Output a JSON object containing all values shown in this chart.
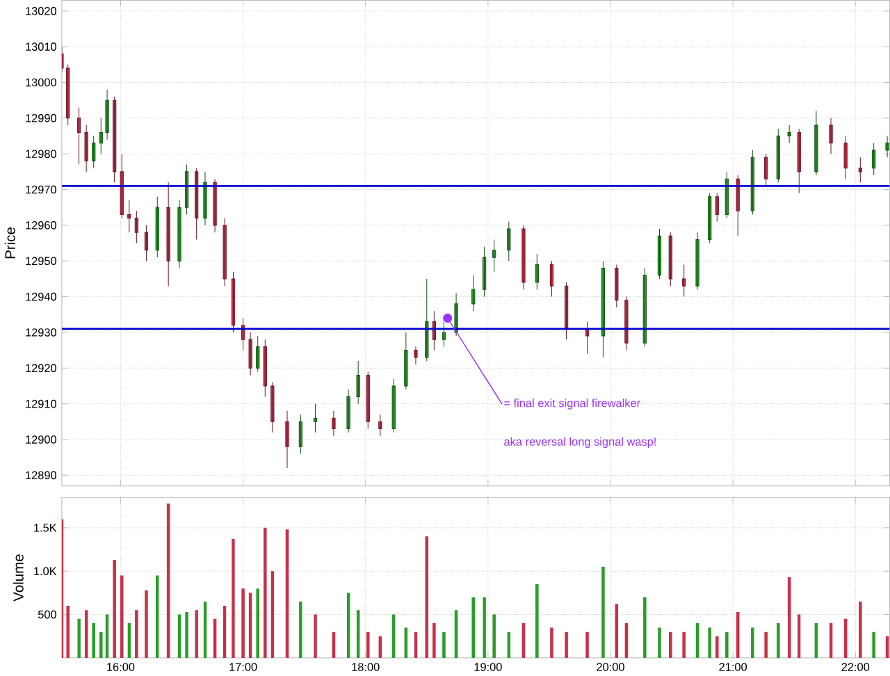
{
  "chart_data": [
    {
      "type": "candlestick",
      "ylabel": "Price",
      "xlim": [
        15.52,
        22.28
      ],
      "ylim": [
        12887,
        13023
      ],
      "xticks": [
        {
          "value": 16,
          "label": null
        },
        {
          "value": 17,
          "label": null
        },
        {
          "value": 18,
          "label": null
        },
        {
          "value": 19,
          "label": null
        },
        {
          "value": 20,
          "label": null
        },
        {
          "value": 21,
          "label": null
        },
        {
          "value": 22,
          "label": null
        }
      ],
      "yticks": [
        12890,
        12900,
        12910,
        12920,
        12930,
        12940,
        12950,
        12960,
        12970,
        12980,
        12990,
        13000,
        13010,
        13020
      ],
      "tick_labels": "y",
      "grid": true,
      "x": [
        15.52,
        15.57,
        15.66,
        15.72,
        15.78,
        15.84,
        15.89,
        15.95,
        16.01,
        16.07,
        16.13,
        16.21,
        16.3,
        16.39,
        16.48,
        16.54,
        16.62,
        16.69,
        16.77,
        16.85,
        16.92,
        17.0,
        17.06,
        17.12,
        17.18,
        17.24,
        17.36,
        17.47,
        17.59,
        17.74,
        17.86,
        17.94,
        18.02,
        18.12,
        18.23,
        18.33,
        18.41,
        18.5,
        18.56,
        18.64,
        18.74,
        18.88,
        18.97,
        19.05,
        19.17,
        19.29,
        19.4,
        19.52,
        19.64,
        19.81,
        19.94,
        20.05,
        20.13,
        20.28,
        20.4,
        20.49,
        20.6,
        20.71,
        20.81,
        20.87,
        20.95,
        21.04,
        21.16,
        21.27,
        21.37,
        21.46,
        21.54,
        21.68,
        21.8,
        21.92,
        22.04,
        22.15,
        22.26
      ],
      "ohlc": [
        [
          13008,
          13010,
          13003,
          13004
        ],
        [
          13004,
          13005,
          12988,
          12990
        ],
        [
          12990,
          12993,
          12977,
          12986
        ],
        [
          12986,
          12988,
          12975,
          12978
        ],
        [
          12978,
          12985,
          12976,
          12983
        ],
        [
          12983,
          12990,
          12980,
          12986
        ],
        [
          12986,
          12998,
          12984,
          12995
        ],
        [
          12995,
          12996,
          12972,
          12975
        ],
        [
          12975,
          12980,
          12962,
          12963
        ],
        [
          12963,
          12967,
          12958,
          12962
        ],
        [
          12962,
          12964,
          12955,
          12958
        ],
        [
          12958,
          12960,
          12950,
          12953
        ],
        [
          12953,
          12968,
          12951,
          12965
        ],
        [
          12965,
          12972,
          12943,
          12950
        ],
        [
          12950,
          12967,
          12948,
          12965
        ],
        [
          12965,
          12977,
          12963,
          12975
        ],
        [
          12975,
          12976,
          12956,
          12962
        ],
        [
          12962,
          12975,
          12960,
          12972
        ],
        [
          12972,
          12973,
          12958,
          12960
        ],
        [
          12960,
          12962,
          12943,
          12945
        ],
        [
          12945,
          12947,
          12930,
          12932
        ],
        [
          12932,
          12934,
          12925,
          12928
        ],
        [
          12928,
          12930,
          12918,
          12920
        ],
        [
          12920,
          12929,
          12919,
          12926
        ],
        [
          12926,
          12928,
          12912,
          12915
        ],
        [
          12915,
          12916,
          12902,
          12905
        ],
        [
          12905,
          12908,
          12892,
          12898
        ],
        [
          12898,
          12907,
          12896,
          12905
        ],
        [
          12905,
          12910,
          12902,
          12906
        ],
        [
          12906,
          12908,
          12901,
          12903
        ],
        [
          12903,
          12914,
          12902,
          12912
        ],
        [
          12912,
          12922,
          12910,
          12918
        ],
        [
          12918,
          12919,
          12903,
          12905
        ],
        [
          12905,
          12907,
          12901,
          12903
        ],
        [
          12903,
          12917,
          12902,
          12915
        ],
        [
          12915,
          12930,
          12914,
          12925
        ],
        [
          12925,
          12926,
          12921,
          12923
        ],
        [
          12923,
          12945,
          12922,
          12933
        ],
        [
          12933,
          12936,
          12925,
          12928
        ],
        [
          12928,
          12933,
          12926,
          12930
        ],
        [
          12930,
          12941,
          12929,
          12938
        ],
        [
          12938,
          12946,
          12936,
          12942
        ],
        [
          12942,
          12954,
          12940,
          12951
        ],
        [
          12951,
          12956,
          12947,
          12953
        ],
        [
          12953,
          12961,
          12950,
          12959
        ],
        [
          12959,
          12960,
          12942,
          12944
        ],
        [
          12944,
          12952,
          12942,
          12949
        ],
        [
          12949,
          12950,
          12940,
          12943
        ],
        [
          12943,
          12944,
          12928,
          12931
        ],
        [
          12931,
          12933,
          12924,
          12929
        ],
        [
          12929,
          12950,
          12923,
          12948
        ],
        [
          12948,
          12949,
          12937,
          12939
        ],
        [
          12939,
          12940,
          12925,
          12927
        ],
        [
          12927,
          12948,
          12926,
          12946
        ],
        [
          12946,
          12959,
          12945,
          12957
        ],
        [
          12957,
          12958,
          12943,
          12945
        ],
        [
          12945,
          12949,
          12940,
          12943
        ],
        [
          12943,
          12958,
          12942,
          12956
        ],
        [
          12956,
          12969,
          12955,
          12968
        ],
        [
          12968,
          12969,
          12961,
          12963
        ],
        [
          12963,
          12975,
          12962,
          12973
        ],
        [
          12973,
          12974,
          12957,
          12964
        ],
        [
          12964,
          12981,
          12963,
          12979
        ],
        [
          12979,
          12980,
          12971,
          12973
        ],
        [
          12973,
          12987,
          12972,
          12985
        ],
        [
          12985,
          12988,
          12983,
          12986
        ],
        [
          12986,
          12987,
          12969,
          12975
        ],
        [
          12975,
          12992,
          12974,
          12988
        ],
        [
          12988,
          12990,
          12980,
          12983
        ],
        [
          12983,
          12985,
          12973,
          12976
        ],
        [
          12976,
          12979,
          12972,
          12975
        ],
        [
          12976,
          12983,
          12974,
          12981
        ],
        [
          12981,
          12985,
          12979,
          12983
        ]
      ],
      "colors": [
        "#c8304a",
        "#c8304a",
        "#c8304a",
        "#c8304a",
        "#2a9d2a",
        "#2a9d2a",
        "#2a9d2a",
        "#c8304a",
        "#c8304a",
        "#c8304a",
        "#c8304a",
        "#c8304a",
        "#2a9d2a",
        "#c8304a",
        "#2a9d2a",
        "#2a9d2a",
        "#c8304a",
        "#2a9d2a",
        "#c8304a",
        "#c8304a",
        "#c8304a",
        "#c8304a",
        "#c8304a",
        "#2a9d2a",
        "#c8304a",
        "#c8304a",
        "#c8304a",
        "#2a9d2a",
        "#2a9d2a",
        "#c8304a",
        "#2a9d2a",
        "#2a9d2a",
        "#c8304a",
        "#c8304a",
        "#2a9d2a",
        "#2a9d2a",
        "#c8304a",
        "#2a9d2a",
        "#c8304a",
        "#2a9d2a",
        "#2a9d2a",
        "#2a9d2a",
        "#2a9d2a",
        "#2a9d2a",
        "#2a9d2a",
        "#c8304a",
        "#2a9d2a",
        "#c8304a",
        "#c8304a",
        "#c8304a",
        "#2a9d2a",
        "#c8304a",
        "#c8304a",
        "#2a9d2a",
        "#2a9d2a",
        "#c8304a",
        "#c8304a",
        "#2a9d2a",
        "#2a9d2a",
        "#c8304a",
        "#2a9d2a",
        "#c8304a",
        "#2a9d2a",
        "#c8304a",
        "#2a9d2a",
        "#2a9d2a",
        "#c8304a",
        "#2a9d2a",
        "#c8304a",
        "#c8304a",
        "#c8304a",
        "#2a9d2a",
        "#2a9d2a"
      ],
      "series": [
        {
          "type": "scatter",
          "x": [
            18.67
          ],
          "values": [
            12934
          ],
          "color": "#9933ff"
        }
      ],
      "ref_lines": [
        {
          "axis": "y",
          "value": 12971,
          "color": "#0000cc"
        },
        {
          "axis": "y",
          "value": 12931,
          "color": "#0000cc"
        }
      ],
      "annotations": [
        {
          "text": "= final exit signal firewalker",
          "x": 18.67,
          "y": 12934
        },
        "aka reversal long signal wasp!"
      ]
    },
    {
      "type": "bar",
      "ylabel": "Volume",
      "xlim": [
        15.52,
        22.28
      ],
      "ylim": [
        0,
        1850
      ],
      "xticks": [
        {
          "value": 16,
          "label": "16:00"
        },
        {
          "value": 17,
          "label": "17:00"
        },
        {
          "value": 18,
          "label": "18:00"
        },
        {
          "value": 19,
          "label": "19:00"
        },
        {
          "value": 20,
          "label": "20:00"
        },
        {
          "value": 21,
          "label": "21:00"
        },
        {
          "value": 22,
          "label": "22:00"
        }
      ],
      "yticks": [
        500,
        {
          "value": 1000,
          "label": "1.0K"
        },
        {
          "value": 1500,
          "label": "1.5K"
        }
      ],
      "grid": true,
      "x": [
        15.52,
        15.57,
        15.66,
        15.72,
        15.78,
        15.84,
        15.89,
        15.95,
        16.01,
        16.07,
        16.13,
        16.21,
        16.3,
        16.39,
        16.48,
        16.54,
        16.62,
        16.69,
        16.77,
        16.85,
        16.92,
        17.0,
        17.06,
        17.12,
        17.18,
        17.24,
        17.36,
        17.47,
        17.59,
        17.74,
        17.86,
        17.94,
        18.02,
        18.12,
        18.23,
        18.33,
        18.41,
        18.5,
        18.56,
        18.64,
        18.74,
        18.88,
        18.97,
        19.05,
        19.17,
        19.29,
        19.4,
        19.52,
        19.64,
        19.81,
        19.94,
        20.05,
        20.13,
        20.28,
        20.4,
        20.49,
        20.6,
        20.71,
        20.81,
        20.87,
        20.95,
        21.04,
        21.16,
        21.27,
        21.37,
        21.46,
        21.54,
        21.68,
        21.8,
        21.92,
        22.04,
        22.15,
        22.26
      ],
      "values": [
        1600,
        600,
        450,
        550,
        400,
        300,
        500,
        1130,
        950,
        400,
        550,
        780,
        950,
        1780,
        500,
        530,
        550,
        650,
        450,
        600,
        1370,
        800,
        750,
        800,
        1500,
        1000,
        1480,
        650,
        500,
        300,
        750,
        550,
        300,
        250,
        500,
        350,
        300,
        1400,
        400,
        300,
        550,
        700,
        700,
        500,
        300,
        400,
        850,
        350,
        300,
        300,
        1050,
        620,
        400,
        700,
        350,
        300,
        300,
        400,
        350,
        250,
        300,
        530,
        350,
        300,
        400,
        930,
        500,
        400,
        400,
        450,
        650,
        300,
        250
      ],
      "colors": [
        "#c8304a",
        "#c8304a",
        "#2a9d2a",
        "#c8304a",
        "#2a9d2a",
        "#2a9d2a",
        "#2a9d2a",
        "#c8304a",
        "#c8304a",
        "#2a9d2a",
        "#c8304a",
        "#c8304a",
        "#2a9d2a",
        "#c8304a",
        "#2a9d2a",
        "#2a9d2a",
        "#c8304a",
        "#2a9d2a",
        "#c8304a",
        "#c8304a",
        "#c8304a",
        "#c8304a",
        "#c8304a",
        "#2a9d2a",
        "#c8304a",
        "#c8304a",
        "#c8304a",
        "#2a9d2a",
        "#c8304a",
        "#c8304a",
        "#2a9d2a",
        "#2a9d2a",
        "#c8304a",
        "#c8304a",
        "#2a9d2a",
        "#2a9d2a",
        "#c8304a",
        "#c8304a",
        "#c8304a",
        "#2a9d2a",
        "#2a9d2a",
        "#2a9d2a",
        "#2a9d2a",
        "#2a9d2a",
        "#2a9d2a",
        "#c8304a",
        "#2a9d2a",
        "#c8304a",
        "#c8304a",
        "#c8304a",
        "#2a9d2a",
        "#c8304a",
        "#c8304a",
        "#2a9d2a",
        "#2a9d2a",
        "#c8304a",
        "#c8304a",
        "#2a9d2a",
        "#2a9d2a",
        "#c8304a",
        "#2a9d2a",
        "#c8304a",
        "#2a9d2a",
        "#c8304a",
        "#2a9d2a",
        "#c8304a",
        "#c8304a",
        "#2a9d2a",
        "#c8304a",
        "#c8304a",
        "#c8304a",
        "#2a9d2a",
        "#c8304a"
      ]
    }
  ]
}
